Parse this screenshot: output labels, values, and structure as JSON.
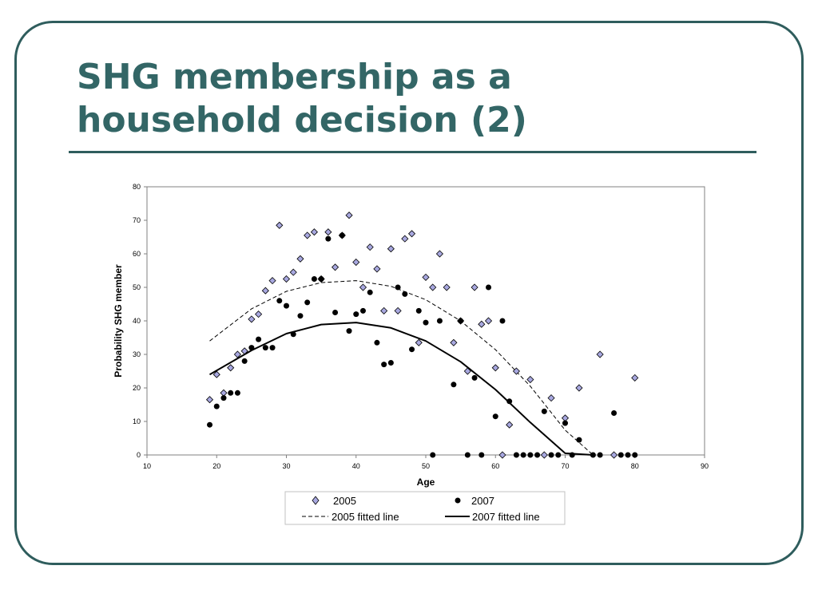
{
  "slide": {
    "title_line1": "SHG membership as a",
    "title_line2": "household decision (2)",
    "colors": {
      "accent": "#336666",
      "frame": "#2f5d5d"
    }
  },
  "chart_data": {
    "type": "scatter",
    "xlabel": "Age",
    "ylabel": "Probability SHG member",
    "xlim": [
      10,
      90
    ],
    "ylim": [
      0,
      80
    ],
    "xticks": [
      10,
      20,
      30,
      40,
      50,
      60,
      70,
      80,
      90
    ],
    "yticks": [
      0,
      10,
      20,
      30,
      40,
      50,
      60,
      70,
      80
    ],
    "grid": false,
    "legend_position": "bottom",
    "series": [
      {
        "name": "2005",
        "marker": "diamond",
        "color": "#a8a8e0",
        "points": [
          [
            19,
            16.5
          ],
          [
            20,
            24
          ],
          [
            21,
            18.5
          ],
          [
            22,
            26
          ],
          [
            23,
            30
          ],
          [
            24,
            31
          ],
          [
            25,
            40.5
          ],
          [
            26,
            42
          ],
          [
            27,
            49
          ],
          [
            28,
            52
          ],
          [
            29,
            68.5
          ],
          [
            30,
            52.5
          ],
          [
            31,
            54.5
          ],
          [
            32,
            58.5
          ],
          [
            33,
            65.5
          ],
          [
            34,
            66.5
          ],
          [
            35,
            52.5
          ],
          [
            36,
            66.5
          ],
          [
            37,
            56
          ],
          [
            38,
            65.5
          ],
          [
            39,
            71.5
          ],
          [
            40,
            57.5
          ],
          [
            41,
            50
          ],
          [
            42,
            62
          ],
          [
            43,
            55.5
          ],
          [
            44,
            43
          ],
          [
            45,
            61.5
          ],
          [
            46,
            43
          ],
          [
            47,
            64.5
          ],
          [
            48,
            66
          ],
          [
            49,
            33.5
          ],
          [
            50,
            53
          ],
          [
            51,
            50
          ],
          [
            52,
            60
          ],
          [
            53,
            50
          ],
          [
            54,
            33.5
          ],
          [
            55,
            40
          ],
          [
            56,
            25
          ],
          [
            57,
            50
          ],
          [
            58,
            39
          ],
          [
            59,
            40
          ],
          [
            60,
            26
          ],
          [
            61,
            0
          ],
          [
            62,
            9
          ],
          [
            63,
            25
          ],
          [
            65,
            22.5
          ],
          [
            67,
            0
          ],
          [
            68,
            17
          ],
          [
            70,
            11
          ],
          [
            72,
            20
          ],
          [
            75,
            30
          ],
          [
            77,
            0
          ],
          [
            80,
            23
          ]
        ]
      },
      {
        "name": "2007",
        "marker": "circle",
        "color": "#000000",
        "points": [
          [
            19,
            9
          ],
          [
            20,
            14.5
          ],
          [
            21,
            17
          ],
          [
            22,
            18.5
          ],
          [
            23,
            18.5
          ],
          [
            24,
            28
          ],
          [
            25,
            32
          ],
          [
            26,
            34.5
          ],
          [
            27,
            32
          ],
          [
            28,
            32
          ],
          [
            29,
            46
          ],
          [
            30,
            44.5
          ],
          [
            31,
            36
          ],
          [
            32,
            41.5
          ],
          [
            33,
            45.5
          ],
          [
            34,
            52.5
          ],
          [
            35,
            52.5
          ],
          [
            36,
            64.5
          ],
          [
            37,
            42.5
          ],
          [
            38,
            65.5
          ],
          [
            39,
            37
          ],
          [
            40,
            42
          ],
          [
            41,
            43
          ],
          [
            42,
            48.5
          ],
          [
            43,
            33.5
          ],
          [
            44,
            27
          ],
          [
            45,
            27.5
          ],
          [
            46,
            50
          ],
          [
            47,
            48
          ],
          [
            48,
            31.5
          ],
          [
            49,
            43
          ],
          [
            50,
            39.5
          ],
          [
            51,
            0
          ],
          [
            52,
            40
          ],
          [
            54,
            21
          ],
          [
            55,
            40
          ],
          [
            56,
            0
          ],
          [
            57,
            23
          ],
          [
            58,
            0
          ],
          [
            59,
            50
          ],
          [
            60,
            11.5
          ],
          [
            61,
            40
          ],
          [
            62,
            16
          ],
          [
            63,
            0
          ],
          [
            64,
            0
          ],
          [
            65,
            0
          ],
          [
            66,
            0
          ],
          [
            67,
            13
          ],
          [
            68,
            0
          ],
          [
            69,
            0
          ],
          [
            70,
            9.5
          ],
          [
            71,
            0
          ],
          [
            72,
            4.5
          ],
          [
            74,
            0
          ],
          [
            75,
            0
          ],
          [
            77,
            12.5
          ],
          [
            78,
            0
          ],
          [
            79,
            0
          ],
          [
            80,
            0
          ]
        ]
      }
    ],
    "fitted_lines": [
      {
        "name": "2005 fitted line",
        "style": "dashed",
        "color": "#000000",
        "points": [
          [
            19,
            34
          ],
          [
            25,
            43.6
          ],
          [
            30,
            48.8
          ],
          [
            35,
            51.4
          ],
          [
            40,
            52
          ],
          [
            45,
            50.3
          ],
          [
            50,
            46.3
          ],
          [
            55,
            40
          ],
          [
            60,
            31.4
          ],
          [
            65,
            20.5
          ],
          [
            70,
            7.4
          ],
          [
            74,
            0
          ]
        ]
      },
      {
        "name": "2007 fitted line",
        "style": "solid",
        "color": "#000000",
        "points": [
          [
            19,
            24
          ],
          [
            25,
            31.2
          ],
          [
            30,
            36.2
          ],
          [
            35,
            38.9
          ],
          [
            40,
            39.5
          ],
          [
            45,
            37.9
          ],
          [
            50,
            34
          ],
          [
            55,
            27.8
          ],
          [
            60,
            19.5
          ],
          [
            65,
            9.7
          ],
          [
            70,
            0.5
          ],
          [
            74,
            0
          ]
        ]
      }
    ],
    "legend": {
      "s2005": "2005",
      "s2007": "2007",
      "f2005": "2005 fitted line",
      "f2007": "2007 fitted line"
    }
  }
}
